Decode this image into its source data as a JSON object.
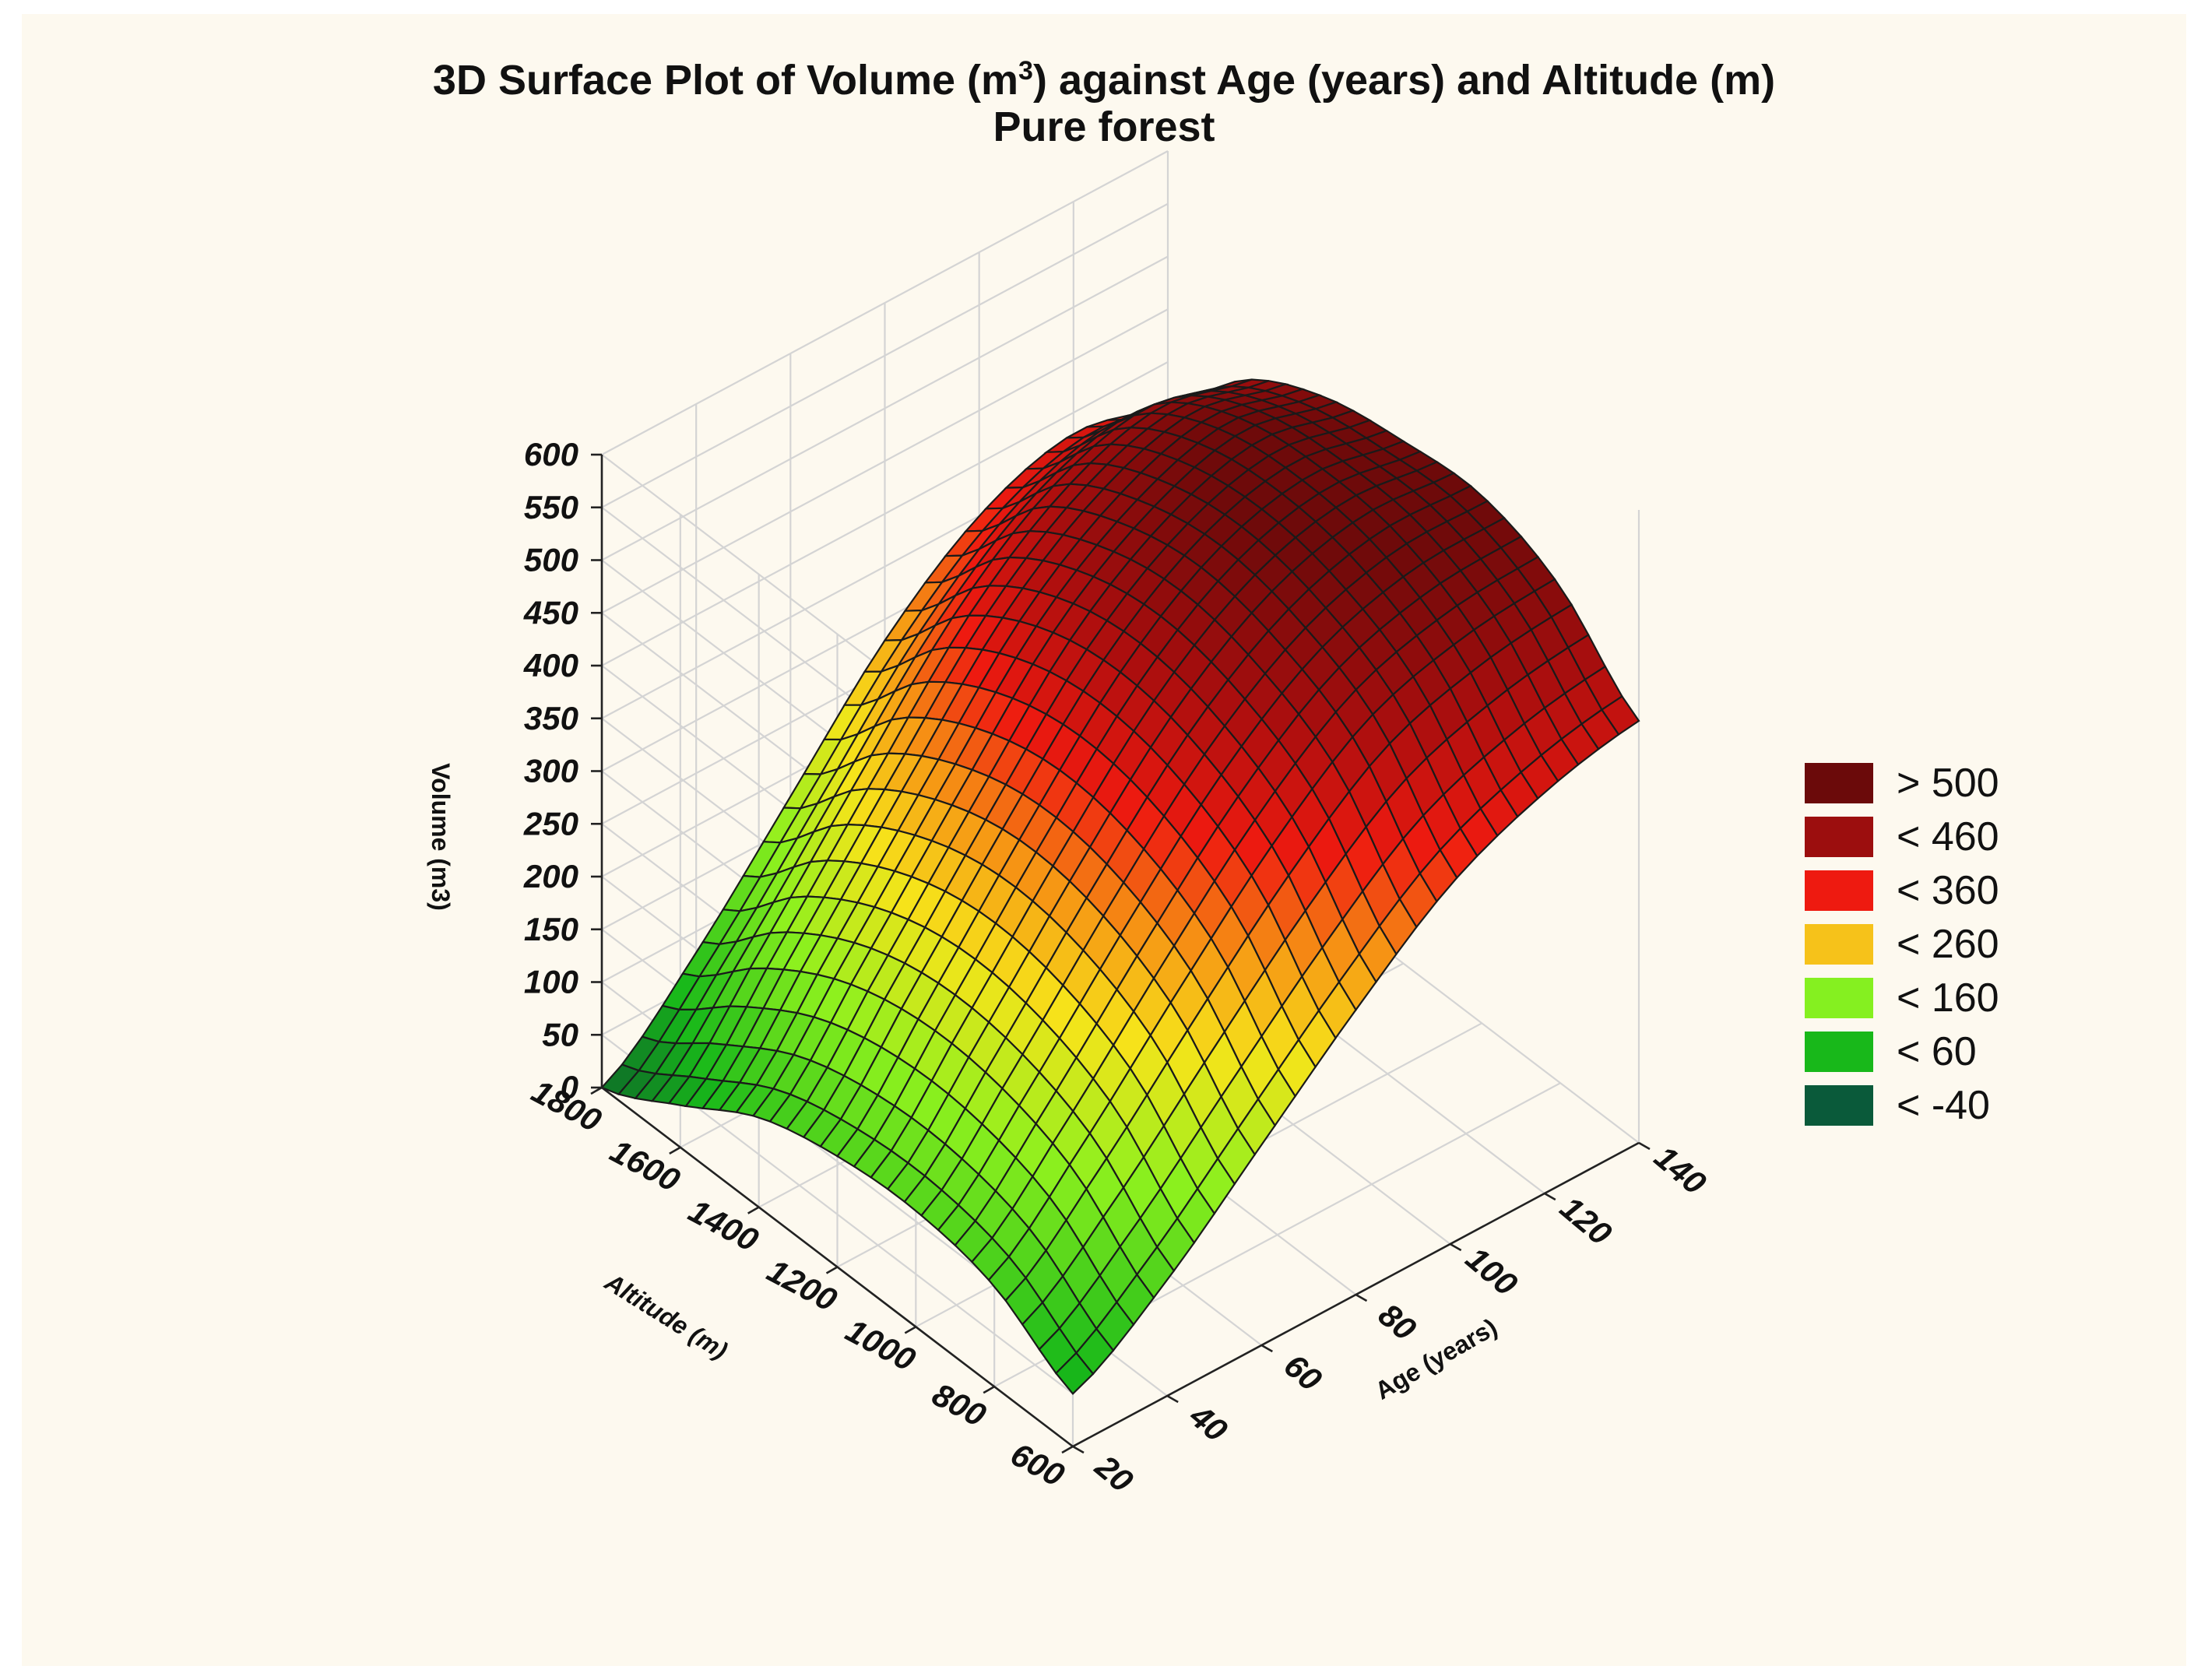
{
  "chart_data": {
    "type": "surface3d",
    "title": "3D Surface Plot of Volume (m",
    "title_superscript": "3",
    "title_suffix": ") against Age (years) and Altitude (m)",
    "subtitle": "Pure forest",
    "xlabel": "Age (years)",
    "ylabel": "Altitude (m)",
    "zlabel": "Volume (m3)",
    "x_range": [
      20,
      140
    ],
    "y_range": [
      600,
      1800
    ],
    "z_range": [
      0,
      600
    ],
    "x_ticks": [
      "20",
      "40",
      "60",
      "80",
      "100",
      "120",
      "140"
    ],
    "y_ticks": [
      "600",
      "800",
      "1000",
      "1200",
      "1400",
      "1600",
      "1800"
    ],
    "z_ticks": [
      "0",
      "50",
      "100",
      "150",
      "200",
      "250",
      "300",
      "350",
      "400",
      "450",
      "500",
      "550",
      "600"
    ],
    "grid": true,
    "legend_position": "right",
    "ages": [
      20,
      40,
      60,
      80,
      100,
      120,
      140
    ],
    "altitudes": [
      600,
      800,
      1000,
      1200,
      1400,
      1600,
      1800
    ],
    "volume_grid": [
      [
        50,
        110,
        190,
        270,
        340,
        380,
        400
      ],
      [
        95,
        175,
        270,
        360,
        430,
        460,
        470
      ],
      [
        110,
        205,
        310,
        405,
        470,
        500,
        500
      ],
      [
        105,
        210,
        320,
        420,
        485,
        510,
        495
      ],
      [
        85,
        190,
        300,
        405,
        470,
        500,
        480
      ],
      [
        40,
        145,
        255,
        360,
        430,
        460,
        440
      ],
      [
        0,
        80,
        180,
        280,
        350,
        380,
        360
      ]
    ],
    "legend": [
      {
        "label": "> 500",
        "color": "#6b0a0a"
      },
      {
        "label": "< 460",
        "color": "#9c0e0e"
      },
      {
        "label": "< 360",
        "color": "#ee1a10"
      },
      {
        "label": "< 260",
        "color": "#f6c21a"
      },
      {
        "label": "< 160",
        "color": "#85f020"
      },
      {
        "label": "< 60",
        "color": "#18b81a"
      },
      {
        "label": "< -40",
        "color": "#0a5a3a"
      }
    ]
  }
}
